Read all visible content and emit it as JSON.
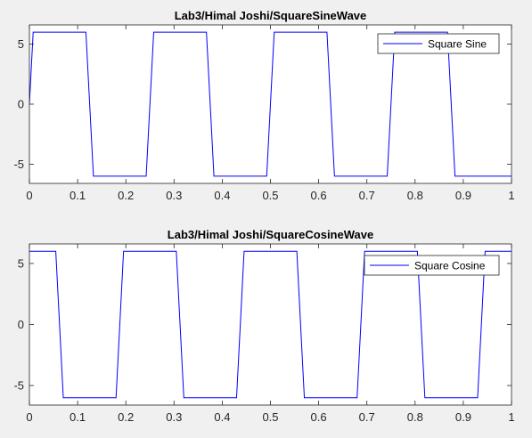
{
  "figure": {
    "background": "#f0f0f0",
    "axes_background": "#ffffff",
    "line_color": "#0000ff"
  },
  "chart_data": [
    {
      "type": "line",
      "title": "Lab3/Himal Joshi/SquareSineWave",
      "xlabel": "",
      "ylabel": "",
      "xlim": [
        0,
        1
      ],
      "ylim": [
        -6.6,
        6.6
      ],
      "xticks": [
        0,
        0.1,
        0.2,
        0.3,
        0.4,
        0.5,
        0.6,
        0.7,
        0.8,
        0.9,
        1
      ],
      "xtick_labels": [
        "0",
        "0.1",
        "0.2",
        "0.3",
        "0.4",
        "0.5",
        "0.6",
        "0.7",
        "0.8",
        "0.9",
        "1"
      ],
      "yticks": [
        -5,
        0,
        5
      ],
      "ytick_labels": [
        "-5",
        "0",
        "5"
      ],
      "grid": false,
      "legend_position": "top-right",
      "series": [
        {
          "name": "Square Sine",
          "color": "#0000ff",
          "x": [
            0,
            0.0078,
            0.1172,
            0.1328,
            0.2422,
            0.2578,
            0.3672,
            0.3828,
            0.4922,
            0.5078,
            0.6172,
            0.6328,
            0.7422,
            0.7578,
            0.8672,
            0.8828,
            1.0
          ],
          "y": [
            0,
            6,
            6,
            -6,
            -6,
            6,
            6,
            -6,
            -6,
            6,
            6,
            -6,
            -6,
            6,
            6,
            -6,
            -6
          ]
        }
      ]
    },
    {
      "type": "line",
      "title": "Lab3/Himal Joshi/SquareCosineWave",
      "xlabel": "",
      "ylabel": "",
      "xlim": [
        0,
        1
      ],
      "ylim": [
        -6.6,
        6.6
      ],
      "xticks": [
        0,
        0.1,
        0.2,
        0.3,
        0.4,
        0.5,
        0.6,
        0.7,
        0.8,
        0.9,
        1
      ],
      "xtick_labels": [
        "0",
        "0.1",
        "0.2",
        "0.3",
        "0.4",
        "0.5",
        "0.6",
        "0.7",
        "0.8",
        "0.9",
        "1"
      ],
      "yticks": [
        -5,
        0,
        5
      ],
      "ytick_labels": [
        "-5",
        "0",
        "5"
      ],
      "grid": false,
      "legend_position": "top-right",
      "series": [
        {
          "name": "Square Cosine",
          "color": "#0000ff",
          "x": [
            0,
            0.0547,
            0.0703,
            0.1797,
            0.1953,
            0.3047,
            0.3203,
            0.4297,
            0.4453,
            0.5547,
            0.5703,
            0.6797,
            0.6953,
            0.8047,
            0.8203,
            0.9297,
            0.9453,
            1.0
          ],
          "y": [
            6,
            6,
            -6,
            -6,
            6,
            6,
            -6,
            -6,
            6,
            6,
            -6,
            -6,
            6,
            6,
            -6,
            -6,
            6,
            6
          ]
        }
      ]
    }
  ]
}
